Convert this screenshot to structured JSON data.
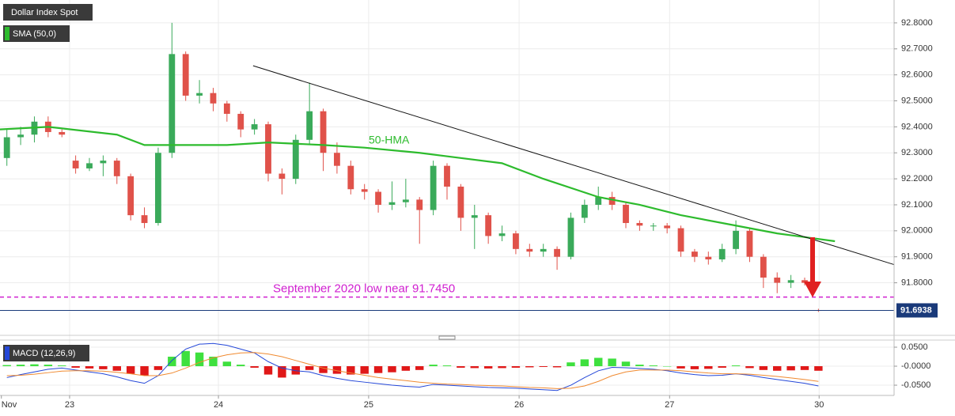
{
  "chart_data": {
    "type": "candlestick",
    "title": "Dollar Index Spot",
    "indicator": "SMA (50,0)",
    "up_color": "#3aaa5a",
    "down_color": "#e0524a",
    "grid": true,
    "xlim": [
      -0.5,
      64.5
    ],
    "xticks": [
      {
        "value": -0.4,
        "label": "Nov"
      },
      {
        "value": 4.56,
        "label": "23"
      },
      {
        "value": 15.38,
        "label": "24"
      },
      {
        "value": 26.3,
        "label": "25"
      },
      {
        "value": 37.24,
        "label": "26"
      },
      {
        "value": 48.18,
        "label": "27"
      },
      {
        "value": 59.05,
        "label": "30"
      }
    ],
    "ylim": [
      91.61,
      92.888
    ],
    "yticks": [
      {
        "value": 91.8,
        "label": "91.8000"
      },
      {
        "value": 91.9,
        "label": "91.9000"
      },
      {
        "value": 92.0,
        "label": "92.0000"
      },
      {
        "value": 92.1,
        "label": "92.1000"
      },
      {
        "value": 92.2,
        "label": "92.2000"
      },
      {
        "value": 92.3,
        "label": "92.3000"
      },
      {
        "value": 92.4,
        "label": "92.4000"
      },
      {
        "value": 92.5,
        "label": "92.5000"
      },
      {
        "value": 92.6,
        "label": "92.6000"
      },
      {
        "value": 92.7,
        "label": "92.7000"
      },
      {
        "value": 92.8,
        "label": "92.8000"
      }
    ],
    "x": [
      0,
      1,
      2,
      3,
      4,
      5,
      6,
      7,
      8,
      9,
      10,
      11,
      12,
      13,
      14,
      15,
      16,
      17,
      18,
      19,
      20,
      21,
      22,
      23,
      24,
      25,
      26,
      27,
      28,
      29,
      30,
      31,
      32,
      33,
      34,
      35,
      36,
      37,
      38,
      39,
      40,
      41,
      42,
      43,
      44,
      45,
      46,
      47,
      48,
      49,
      50,
      51,
      52,
      53,
      54,
      55,
      56,
      57,
      58,
      59
    ],
    "open": [
      92.28,
      92.36,
      92.37,
      92.42,
      92.38,
      92.27,
      92.24,
      92.26,
      92.27,
      92.21,
      92.06,
      92.03,
      92.3,
      92.68,
      92.52,
      92.53,
      92.49,
      92.45,
      92.39,
      92.41,
      92.22,
      92.2,
      92.35,
      92.46,
      92.3,
      92.25,
      92.16,
      92.15,
      92.1,
      92.11,
      92.12,
      92.08,
      92.25,
      92.17,
      92.05,
      92.06,
      91.98,
      91.99,
      91.93,
      91.92,
      91.93,
      91.9,
      92.05,
      92.1,
      92.13,
      92.1,
      92.03,
      92.02,
      92.02,
      92.01,
      91.92,
      91.9,
      91.89,
      91.93,
      92.0,
      91.9,
      91.82,
      91.8,
      91.81,
      91.695
    ],
    "high": [
      92.39,
      92.4,
      92.44,
      92.44,
      92.39,
      92.29,
      92.28,
      92.29,
      92.28,
      92.22,
      92.09,
      92.32,
      92.8,
      92.69,
      92.58,
      92.55,
      92.5,
      92.46,
      92.43,
      92.42,
      92.24,
      92.37,
      92.57,
      92.47,
      92.34,
      92.27,
      92.18,
      92.16,
      92.19,
      92.2,
      92.13,
      92.27,
      92.26,
      92.18,
      92.1,
      92.07,
      92.02,
      92.0,
      91.95,
      91.95,
      91.94,
      92.07,
      92.12,
      92.17,
      92.15,
      92.11,
      92.04,
      92.03,
      92.03,
      92.02,
      91.93,
      91.92,
      91.95,
      92.04,
      92.01,
      91.91,
      91.84,
      91.83,
      91.82,
      91.7
    ],
    "low": [
      92.25,
      92.33,
      92.34,
      92.36,
      92.36,
      92.22,
      92.23,
      92.21,
      92.18,
      92.04,
      92.01,
      92.02,
      92.28,
      92.5,
      92.49,
      92.46,
      92.42,
      92.36,
      92.37,
      92.19,
      92.14,
      92.18,
      92.33,
      92.23,
      92.22,
      92.14,
      92.12,
      92.07,
      92.08,
      92.09,
      91.95,
      92.06,
      92.12,
      92.0,
      91.93,
      91.95,
      91.96,
      91.91,
      91.9,
      91.9,
      91.85,
      91.89,
      92.03,
      92.08,
      92.08,
      92.01,
      92.0,
      92.0,
      91.99,
      91.9,
      91.88,
      91.87,
      91.88,
      91.91,
      91.88,
      91.78,
      91.76,
      91.78,
      91.79,
      91.688
    ],
    "close": [
      92.36,
      92.37,
      92.42,
      92.38,
      92.37,
      92.24,
      92.26,
      92.27,
      92.21,
      92.06,
      92.03,
      92.3,
      92.68,
      92.52,
      92.53,
      92.49,
      92.45,
      92.39,
      92.41,
      92.22,
      92.2,
      92.35,
      92.46,
      92.3,
      92.25,
      92.16,
      92.15,
      92.1,
      92.11,
      92.12,
      92.08,
      92.25,
      92.17,
      92.05,
      92.06,
      91.98,
      91.99,
      91.93,
      91.92,
      91.93,
      91.9,
      92.05,
      92.1,
      92.13,
      92.1,
      92.03,
      92.02,
      92.02,
      92.01,
      91.92,
      91.9,
      91.89,
      91.93,
      92.0,
      91.9,
      91.82,
      91.8,
      91.81,
      91.8,
      91.6938
    ],
    "sma": {
      "color": "#2dbb2d",
      "x": [
        -0.5,
        3,
        8,
        10,
        12,
        16,
        19,
        23,
        26,
        30,
        33,
        36,
        39,
        43,
        46,
        49,
        53,
        56,
        60.2
      ],
      "values": [
        92.39,
        92.4,
        92.37,
        92.33,
        92.33,
        92.33,
        92.34,
        92.33,
        92.32,
        92.3,
        92.28,
        92.26,
        92.2,
        92.13,
        92.1,
        92.06,
        92.02,
        91.99,
        91.96
      ]
    },
    "trendline": {
      "color": "#111111",
      "x": [
        17.9,
        64.5
      ],
      "values": [
        92.635,
        91.87
      ]
    },
    "annotations": [
      {
        "text": "50-HMA",
        "color": "#2dbb2d"
      },
      {
        "text": "September 2020 low near 91.7450",
        "color": "#d020d0",
        "level": 91.745
      }
    ],
    "last_color": "#1a3a7a",
    "macd": {
      "name": "MACD (12,26,9)",
      "ylim": [
        -0.077,
        0.0646
      ],
      "yticks": [
        {
          "value": 0.05,
          "label": "0.0500"
        },
        {
          "value": 0,
          "label": "-0.0000"
        },
        {
          "value": -0.05,
          "label": "-0.0500"
        }
      ],
      "hist_up_color": "#3ee03e",
      "hist_down_color": "#e01818",
      "histogram": [
        0.003,
        0.004,
        0.005,
        0.004,
        0.002,
        -0.004,
        -0.006,
        -0.008,
        -0.012,
        -0.02,
        -0.024,
        -0.01,
        0.025,
        0.04,
        0.036,
        0.025,
        0.012,
        0.004,
        -0.004,
        -0.022,
        -0.03,
        -0.022,
        -0.01,
        -0.018,
        -0.02,
        -0.022,
        -0.02,
        -0.018,
        -0.016,
        -0.012,
        -0.01,
        0.004,
        0.002,
        -0.004,
        -0.005,
        -0.006,
        -0.005,
        -0.004,
        -0.003,
        -0.002,
        -0.003,
        0.01,
        0.018,
        0.022,
        0.02,
        0.012,
        0.004,
        0.002,
        0,
        -0.006,
        -0.008,
        -0.007,
        -0.004,
        0.002,
        -0.005,
        -0.01,
        -0.012,
        -0.011,
        -0.01,
        -0.012
      ],
      "macd_color": "#2447d8",
      "macd": [
        -0.03,
        -0.022,
        -0.015,
        -0.008,
        -0.005,
        -0.01,
        -0.015,
        -0.02,
        -0.028,
        -0.038,
        -0.045,
        -0.025,
        0.015,
        0.045,
        0.058,
        0.06,
        0.055,
        0.045,
        0.035,
        0.012,
        -0.005,
        -0.012,
        -0.015,
        -0.025,
        -0.032,
        -0.038,
        -0.042,
        -0.046,
        -0.05,
        -0.053,
        -0.055,
        -0.048,
        -0.05,
        -0.052,
        -0.054,
        -0.056,
        -0.057,
        -0.058,
        -0.06,
        -0.062,
        -0.064,
        -0.05,
        -0.03,
        -0.012,
        -0.003,
        -0.004,
        -0.006,
        -0.008,
        -0.012,
        -0.018,
        -0.022,
        -0.025,
        -0.024,
        -0.02,
        -0.024,
        -0.03,
        -0.035,
        -0.04,
        -0.045,
        -0.052
      ],
      "signal_color": "#f08a30",
      "signal": [
        -0.025,
        -0.024,
        -0.021,
        -0.017,
        -0.013,
        -0.012,
        -0.012,
        -0.013,
        -0.016,
        -0.02,
        -0.025,
        -0.025,
        -0.018,
        -0.005,
        0.01,
        0.022,
        0.03,
        0.035,
        0.036,
        0.032,
        0.025,
        0.015,
        0.005,
        -0.005,
        -0.012,
        -0.018,
        -0.024,
        -0.03,
        -0.034,
        -0.038,
        -0.042,
        -0.045,
        -0.047,
        -0.048,
        -0.05,
        -0.051,
        -0.052,
        -0.054,
        -0.056,
        -0.057,
        -0.059,
        -0.058,
        -0.052,
        -0.04,
        -0.025,
        -0.015,
        -0.01,
        -0.01,
        -0.01,
        -0.012,
        -0.015,
        -0.018,
        -0.02,
        -0.02,
        -0.021,
        -0.024,
        -0.027,
        -0.031,
        -0.035,
        -0.04
      ]
    }
  }
}
